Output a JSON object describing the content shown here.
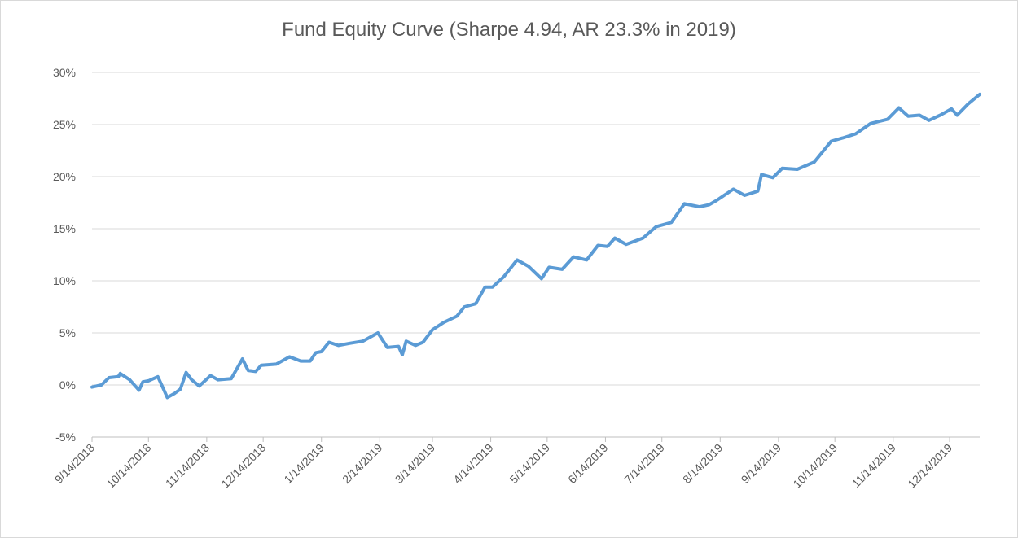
{
  "chart_data": {
    "type": "line",
    "title": "Fund Equity Curve (Sharpe 4.94, AR 23.3% in 2019)",
    "grid": true,
    "ylim": [
      -5,
      30
    ],
    "yticks": [
      {
        "value": -5,
        "label": "-5%"
      },
      {
        "value": 0,
        "label": "0%"
      },
      {
        "value": 5,
        "label": "5%"
      },
      {
        "value": 10,
        "label": "10%"
      },
      {
        "value": 15,
        "label": "15%"
      },
      {
        "value": 20,
        "label": "20%"
      },
      {
        "value": 25,
        "label": "25%"
      },
      {
        "value": 30,
        "label": "30%"
      }
    ],
    "xlim": [
      "9/14/2018",
      "12/30/2019"
    ],
    "xticks": [
      "9/14/2018",
      "10/14/2018",
      "11/14/2018",
      "12/14/2018",
      "1/14/2019",
      "2/14/2019",
      "3/14/2019",
      "4/14/2019",
      "5/14/2019",
      "6/14/2019",
      "7/14/2019",
      "8/14/2019",
      "9/14/2019",
      "10/14/2019",
      "11/14/2019",
      "12/14/2019"
    ],
    "x": [
      "9/14/2018",
      "9/19/2018",
      "9/23/2018",
      "9/28/2018",
      "9/29/2018",
      "10/4/2018",
      "10/9/2018",
      "10/11/2018",
      "10/14/2018",
      "10/19/2018",
      "10/22/2018",
      "10/24/2018",
      "10/28/2018",
      "10/31/2018",
      "11/3/2018",
      "11/6/2018",
      "11/10/2018",
      "11/16/2018",
      "11/20/2018",
      "11/27/2018",
      "12/3/2018",
      "12/6/2018",
      "12/10/2018",
      "12/13/2018",
      "12/21/2018",
      "12/28/2018",
      "1/3/2019",
      "1/8/2019",
      "1/11/2019",
      "1/14/2019",
      "1/18/2019",
      "1/23/2019",
      "1/29/2019",
      "2/5/2019",
      "2/13/2019",
      "2/18/2019",
      "2/24/2019",
      "2/26/2019",
      "2/28/2019",
      "3/5/2019",
      "3/9/2019",
      "3/14/2019",
      "3/20/2019",
      "3/27/2019",
      "3/31/2019",
      "4/6/2019",
      "4/11/2019",
      "4/15/2019",
      "4/21/2019",
      "4/28/2019",
      "5/4/2019",
      "5/11/2019",
      "5/15/2019",
      "5/22/2019",
      "5/28/2019",
      "6/4/2019",
      "6/10/2019",
      "6/15/2019",
      "6/19/2019",
      "6/25/2019",
      "7/4/2019",
      "7/11/2019",
      "7/19/2019",
      "7/26/2019",
      "8/3/2019",
      "8/8/2019",
      "8/12/2019",
      "8/21/2019",
      "8/27/2019",
      "9/3/2019",
      "9/5/2019",
      "9/11/2019",
      "9/16/2019",
      "9/24/2019",
      "10/3/2019",
      "10/12/2019",
      "10/18/2019",
      "10/25/2019",
      "11/2/2019",
      "11/11/2019",
      "11/17/2019",
      "11/22/2019",
      "11/28/2019",
      "12/3/2019",
      "12/9/2019",
      "12/15/2019",
      "12/18/2019",
      "12/24/2019",
      "12/30/2019"
    ],
    "series": [
      {
        "color": "#5b9bd5",
        "values": [
          -0.2,
          0,
          0.7,
          0.8,
          1.1,
          0.5,
          -0.5,
          0.3,
          0.4,
          0.8,
          -0.4,
          -1.2,
          -0.8,
          -0.4,
          1.2,
          0.5,
          -0.1,
          0.9,
          0.5,
          0.6,
          2.5,
          1.4,
          1.3,
          1.9,
          2.0,
          2.7,
          2.3,
          2.3,
          3.1,
          3.2,
          4.1,
          3.8,
          4.0,
          4.2,
          5.0,
          3.6,
          3.7,
          2.9,
          4.2,
          3.8,
          4.1,
          5.3,
          6.0,
          6.6,
          7.5,
          7.8,
          9.4,
          9.4,
          10.4,
          12.0,
          11.4,
          10.2,
          11.3,
          11.1,
          12.3,
          12.0,
          13.4,
          13.3,
          14.1,
          13.5,
          14.1,
          15.2,
          15.6,
          17.4,
          17.1,
          17.3,
          17.7,
          18.8,
          18.2,
          18.6,
          20.2,
          19.9,
          20.8,
          20.7,
          21.4,
          23.4,
          23.7,
          24.1,
          25.1,
          25.5,
          26.6,
          25.8,
          25.9,
          25.4,
          25.9,
          26.5,
          25.9,
          27.0,
          27.9
        ]
      }
    ]
  }
}
